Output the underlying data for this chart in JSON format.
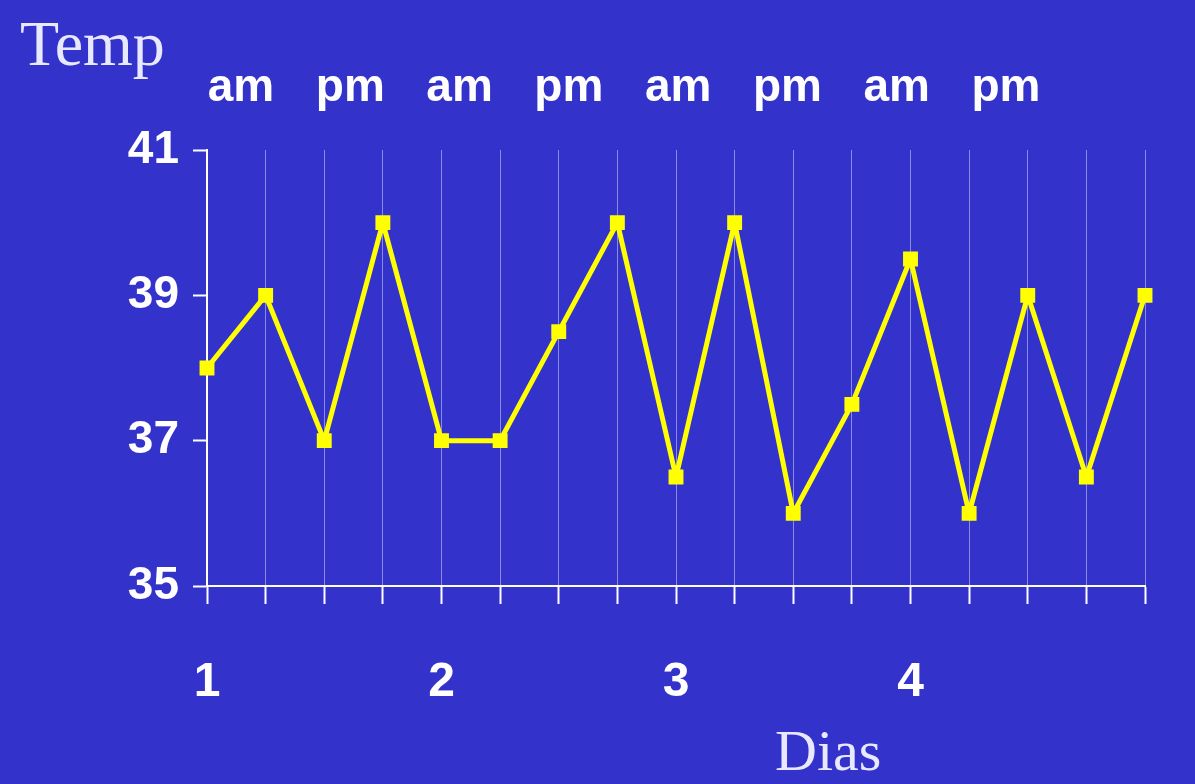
{
  "chart_data": {
    "type": "line",
    "ylabel": "Temp",
    "xlabel": "Dias",
    "annotations": [
      "am",
      "pm",
      "am",
      "pm",
      "am",
      "pm",
      "am",
      "pm"
    ],
    "x": [
      1,
      1.25,
      1.5,
      1.75,
      2,
      2.25,
      2.5,
      2.75,
      3,
      3.25,
      3.5,
      3.75,
      4,
      4.25,
      4.5,
      4.75,
      5
    ],
    "series": [
      {
        "color": "#ffff00",
        "values": [
          38,
          39,
          37,
          40,
          37,
          37,
          38.5,
          40,
          36.5,
          40,
          36,
          37.5,
          39.5,
          36,
          39,
          36.5,
          39
        ]
      }
    ],
    "xlim": [
      1,
      5
    ],
    "xticks": [
      1,
      {
        "value": 1.25,
        "label": null
      },
      {
        "value": 1.5,
        "label": null
      },
      {
        "value": 1.75,
        "label": null
      },
      2,
      {
        "value": 2.25,
        "label": null
      },
      {
        "value": 2.5,
        "label": null
      },
      {
        "value": 2.75,
        "label": null
      },
      3,
      {
        "value": 3.25,
        "label": null
      },
      {
        "value": 3.5,
        "label": null
      },
      {
        "value": 3.75,
        "label": null
      },
      4,
      {
        "value": 4.25,
        "label": null
      },
      {
        "value": 4.5,
        "label": null
      },
      {
        "value": 4.75,
        "label": null
      },
      {
        "value": 5,
        "label": null
      }
    ],
    "ylim": [
      35,
      41
    ],
    "yticks": [
      35,
      37,
      39,
      41
    ],
    "grid": "x",
    "marker": "square",
    "line_style": "solid",
    "legend": false
  }
}
